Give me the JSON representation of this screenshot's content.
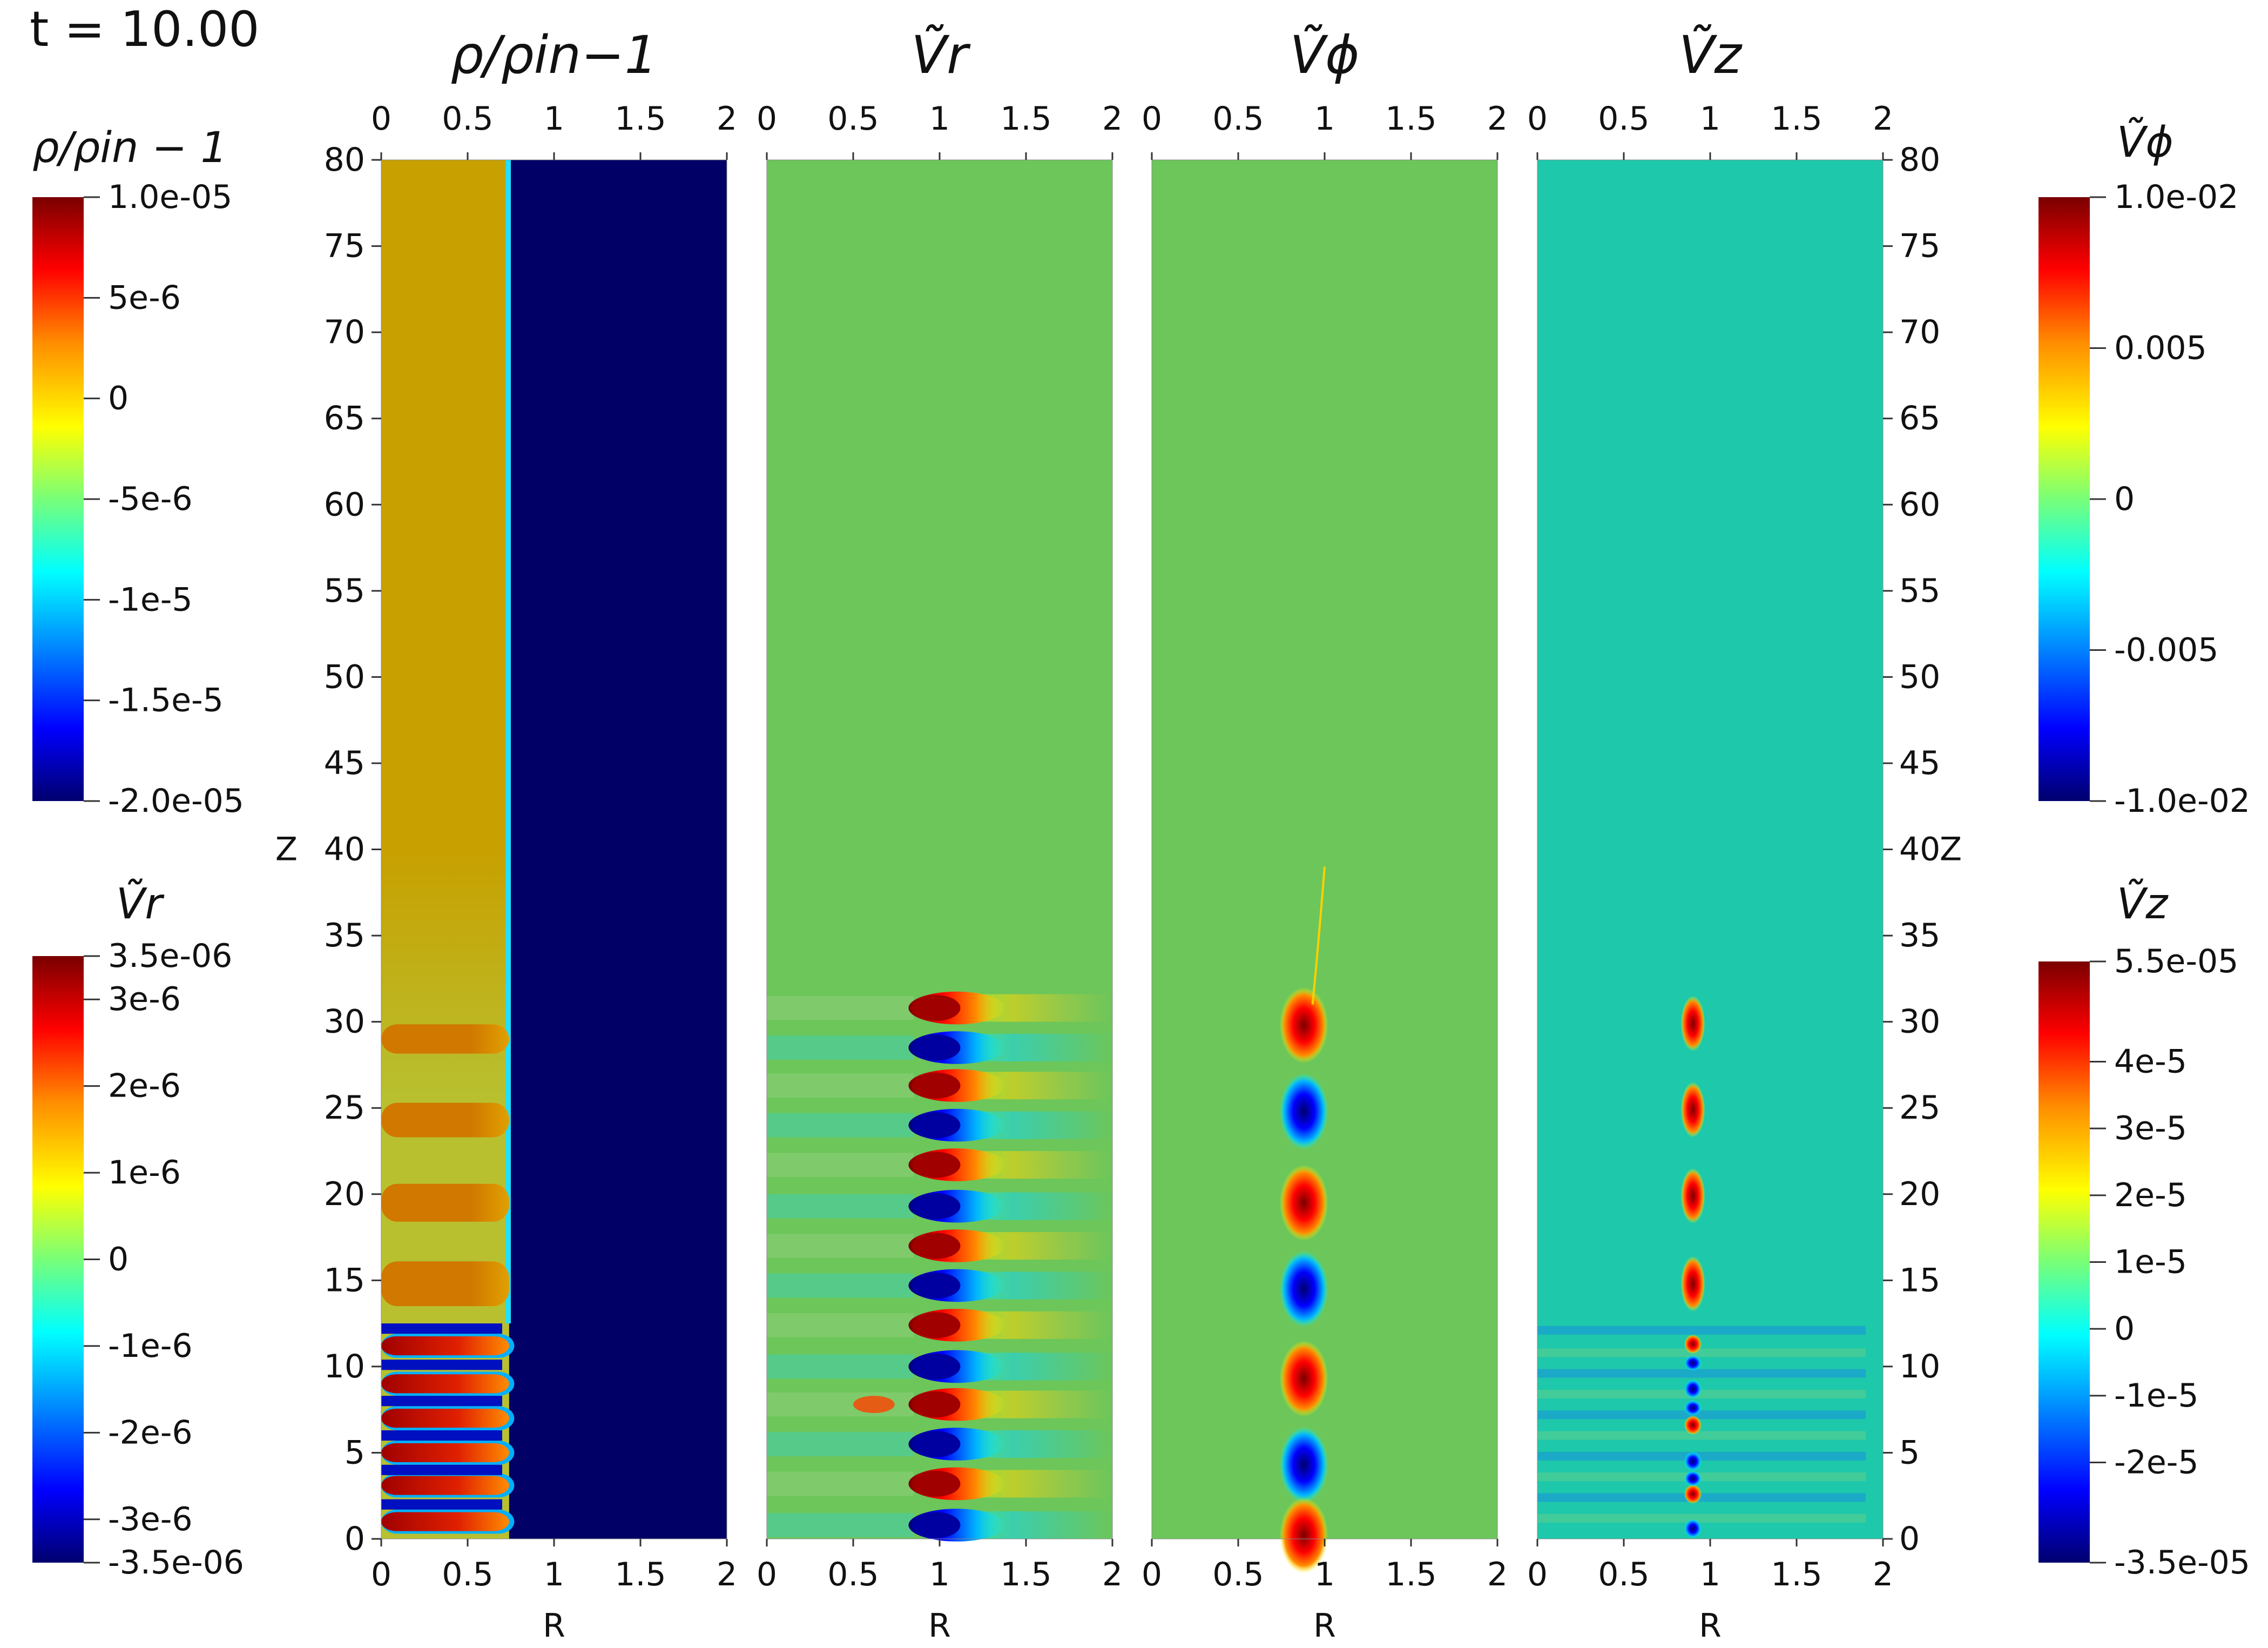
{
  "time_label": "t = 10.00",
  "colorbars": [
    {
      "id": "rho",
      "title": "ρ/ρin − 1",
      "top_label": "1.0e-05",
      "bottom_label": "-2.0e-05",
      "min": -2e-05,
      "max": 1e-05,
      "ticks": [
        {
          "v": 5e-06,
          "label": "5e-6"
        },
        {
          "v": 0,
          "label": "0"
        },
        {
          "v": -5e-06,
          "label": "-5e-6"
        },
        {
          "v": -1e-05,
          "label": "-1e-5"
        },
        {
          "v": -1.5e-05,
          "label": "-1.5e-5"
        }
      ]
    },
    {
      "id": "vr",
      "title": "Ṽr",
      "top_label": "3.5e-06",
      "bottom_label": "-3.5e-06",
      "min": -3.5e-06,
      "max": 3.5e-06,
      "ticks": [
        {
          "v": 3e-06,
          "label": "3e-6"
        },
        {
          "v": 2e-06,
          "label": "2e-6"
        },
        {
          "v": 1e-06,
          "label": "1e-6"
        },
        {
          "v": 0,
          "label": "0"
        },
        {
          "v": -1e-06,
          "label": "-1e-6"
        },
        {
          "v": -2e-06,
          "label": "-2e-6"
        },
        {
          "v": -3e-06,
          "label": "-3e-6"
        }
      ]
    },
    {
      "id": "vphi",
      "title": "Ṽϕ",
      "top_label": "1.0e-02",
      "bottom_label": "-1.0e-02",
      "min": -0.01,
      "max": 0.01,
      "ticks": [
        {
          "v": 0.005,
          "label": "0.005"
        },
        {
          "v": 0,
          "label": "0"
        },
        {
          "v": -0.005,
          "label": "-0.005"
        }
      ]
    },
    {
      "id": "vz",
      "title": "Ṽz",
      "top_label": "5.5e-05",
      "bottom_label": "-3.5e-05",
      "min": -3.5e-05,
      "max": 5.5e-05,
      "ticks": [
        {
          "v": 4e-05,
          "label": "4e-5"
        },
        {
          "v": 3e-05,
          "label": "3e-5"
        },
        {
          "v": 2e-05,
          "label": "2e-5"
        },
        {
          "v": 1e-05,
          "label": "1e-5"
        },
        {
          "v": 0,
          "label": "0"
        },
        {
          "v": -1e-05,
          "label": "-1e-5"
        },
        {
          "v": -2e-05,
          "label": "-2e-5"
        }
      ]
    }
  ],
  "chart_data": {
    "type": "heatmap",
    "xlabel": "R",
    "ylabel": "Z",
    "xlim": [
      0,
      2
    ],
    "ylim": [
      0,
      80
    ],
    "x_ticks": [
      {
        "v": 0,
        "label": "0"
      },
      {
        "v": 0.5,
        "label": "0.5"
      },
      {
        "v": 1,
        "label": "1"
      },
      {
        "v": 1.5,
        "label": "1.5"
      },
      {
        "v": 2,
        "label": "2"
      }
    ],
    "z_ticks": [
      0,
      5,
      10,
      15,
      20,
      25,
      30,
      35,
      40,
      45,
      50,
      55,
      60,
      65,
      70,
      75,
      80
    ],
    "panels": [
      {
        "title": "ρ/ρin−1",
        "colorbar": "rho"
      },
      {
        "title": "Ṽr",
        "colorbar": "vr"
      },
      {
        "title": "Ṽϕ",
        "colorbar": "vphi"
      },
      {
        "title": "Ṽz",
        "colorbar": "vz"
      }
    ],
    "colormap_stops": [
      "#00006e",
      "#0000ff",
      "#00b4ff",
      "#00ffff",
      "#78ff78",
      "#ffff00",
      "#ff8c00",
      "#ff0000",
      "#7a0000"
    ],
    "background_colors": {
      "rho_outer": "#000066",
      "rho_inner": "#c8a000",
      "vr": "#6cc65a",
      "vphi": "#6cc65a",
      "vz": "#1ec8aa"
    }
  }
}
